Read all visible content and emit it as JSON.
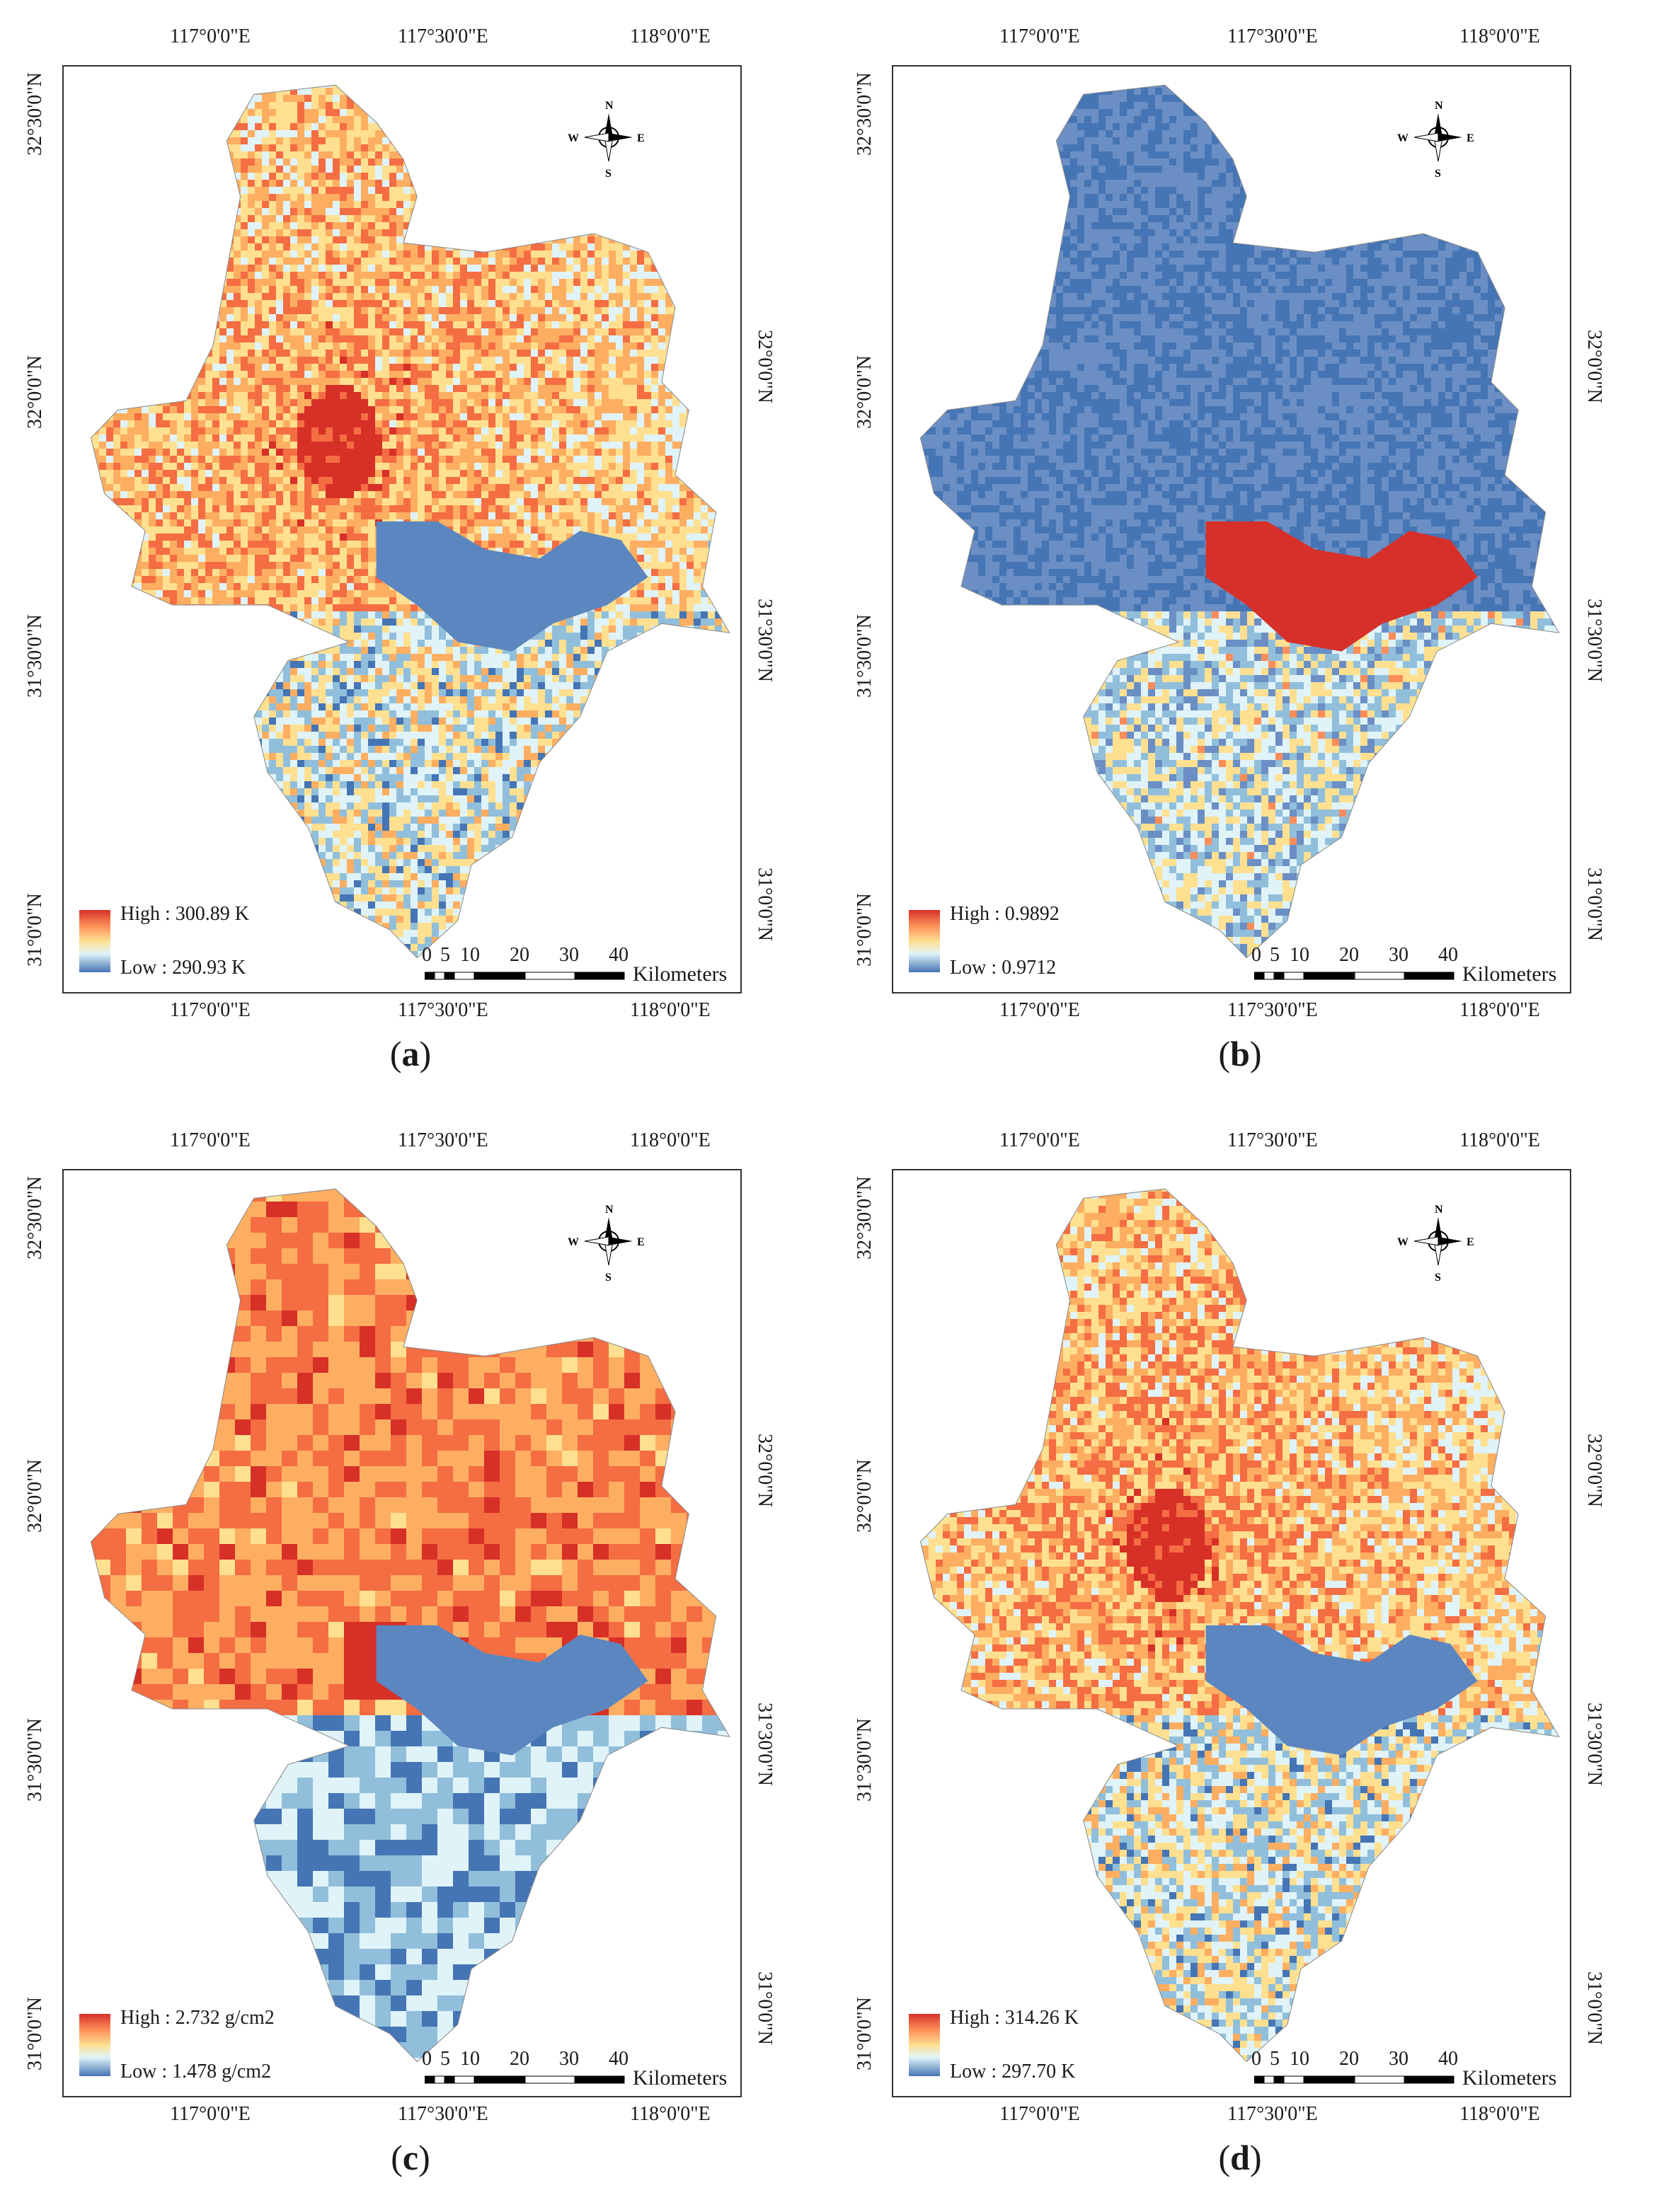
{
  "panels": [
    {
      "id": "a",
      "caption": "a",
      "legend": {
        "high": "High : 300.89 K",
        "low": "Low : 290.93 K"
      },
      "palette": [
        "#4575b4",
        "#91bfdb",
        "#e0f3f8",
        "#fee090",
        "#fc8d59",
        "#d73027"
      ],
      "map_mode": "lst",
      "top_lon": [
        "117°0'0\"E",
        "117°30'0\"E",
        "118°0'0\"E"
      ],
      "bottom_lon": [
        "117°0'0\"E",
        "117°30'0\"E",
        "118°0'0\"E"
      ],
      "left_lat": [
        "32°30'0\"N",
        "32°0'0\"N",
        "31°30'0\"N",
        "31°0'0\"N"
      ],
      "right_lat": [
        "32°0'0\"N",
        "31°30'0\"N",
        "31°0'0\"N"
      ]
    },
    {
      "id": "b",
      "caption": "b",
      "legend": {
        "high": "High : 0.9892",
        "low": "Low : 0.9712"
      },
      "map_mode": "emissivity",
      "top_lon": [
        "117°0'0\"E",
        "117°30'0\"E",
        "118°0'0\"E"
      ],
      "bottom_lon": [
        "117°0'0\"E",
        "117°30'0\"E",
        "118°0'0\"E"
      ],
      "left_lat": [
        "32°30'0\"N",
        "32°0'0\"N",
        "31°30'0\"N",
        "31°0'0\"N"
      ],
      "right_lat": [
        "32°0'0\"N",
        "31°30'0\"N",
        "31°0'0\"N"
      ]
    },
    {
      "id": "c",
      "caption": "c",
      "legend": {
        "high": "High : 2.732 g/cm2",
        "low": "Low : 1.478 g/cm2"
      },
      "map_mode": "water_vapor",
      "top_lon": [
        "117°0'0\"E",
        "117°30'0\"E",
        "118°0'0\"E"
      ],
      "bottom_lon": [
        "117°0'0\"E",
        "117°30'0\"E",
        "118°0'0\"E"
      ],
      "left_lat": [
        "32°30'0\"N",
        "32°0'0\"N",
        "31°30'0\"N",
        "31°0'0\"N"
      ],
      "right_lat": [
        "32°0'0\"N",
        "31°30'0\"N",
        "31°0'0\"N"
      ]
    },
    {
      "id": "d",
      "caption": "d",
      "legend": {
        "high": "High : 314.26 K",
        "low": "Low : 297.70 K"
      },
      "map_mode": "lst",
      "top_lon": [
        "117°0'0\"E",
        "117°30'0\"E",
        "118°0'0\"E"
      ],
      "bottom_lon": [
        "117°0'0\"E",
        "117°30'0\"E",
        "118°0'0\"E"
      ],
      "left_lat": [
        "32°30'0\"N",
        "32°0'0\"N",
        "31°30'0\"N",
        "31°0'0\"N"
      ],
      "right_lat": [
        "32°0'0\"N",
        "31°30'0\"N",
        "31°0'0\"N"
      ]
    }
  ],
  "scale_bar": {
    "ticks": [
      "0",
      "5",
      "10",
      "20",
      "30",
      "40"
    ],
    "unit": "Kilometers"
  },
  "compass": {
    "n": "N",
    "s": "S",
    "e": "E",
    "w": "W"
  },
  "colors": {
    "high": "#d73027",
    "mid": "#fee090",
    "low": "#4575b4",
    "water_red": "#d7302a"
  }
}
